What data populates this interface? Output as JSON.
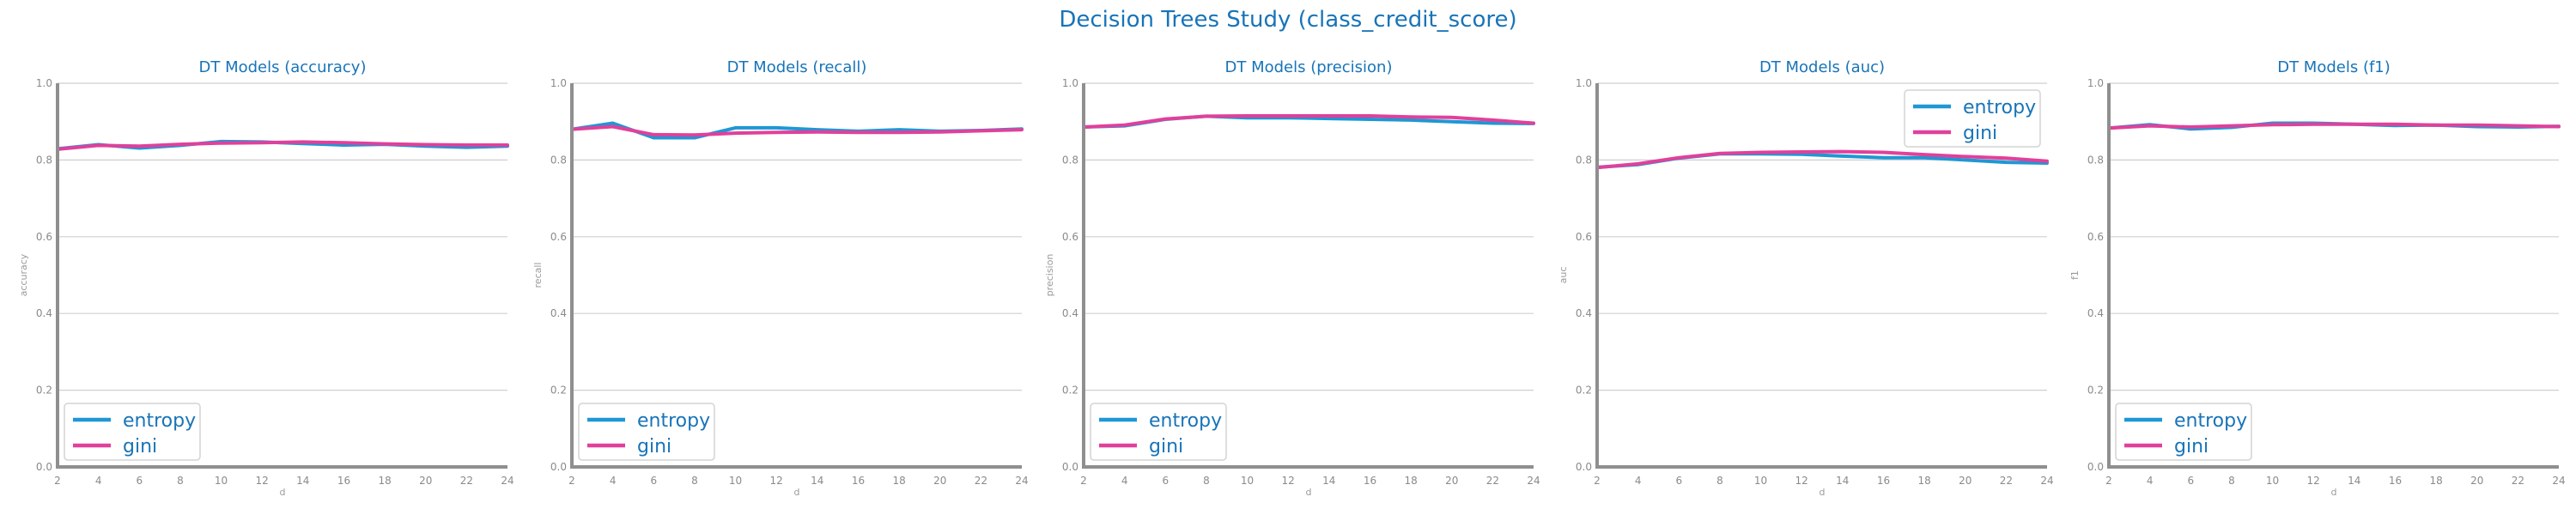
{
  "suptitle": "Decision Trees Study (class_credit_score)",
  "colors": {
    "entropy": "#1f97d4",
    "gini": "#e1409b",
    "title": "#1874b8",
    "axis": "#8f8f8f",
    "grid": "#cfcfcf"
  },
  "chart_data": [
    {
      "type": "line",
      "title": "DT Models (accuracy)",
      "xlabel": "d",
      "ylabel": "accuracy",
      "x": [
        2,
        4,
        6,
        8,
        10,
        12,
        14,
        16,
        18,
        20,
        22,
        24
      ],
      "xticks": [
        "2",
        "4",
        "6",
        "8",
        "10",
        "12",
        "14",
        "16",
        "18",
        "20",
        "22",
        "24"
      ],
      "yticks": [
        "0.0",
        "0.2",
        "0.4",
        "0.6",
        "0.8",
        "1.0"
      ],
      "xlim": [
        2,
        24
      ],
      "ylim": [
        0,
        1
      ],
      "grid": "y",
      "legend": "lower-left",
      "series": [
        {
          "name": "entropy",
          "values": [
            0.829,
            0.84,
            0.831,
            0.838,
            0.848,
            0.847,
            0.843,
            0.839,
            0.841,
            0.836,
            0.833,
            0.836
          ]
        },
        {
          "name": "gini",
          "values": [
            0.828,
            0.838,
            0.836,
            0.841,
            0.844,
            0.845,
            0.847,
            0.845,
            0.842,
            0.84,
            0.839,
            0.839
          ]
        }
      ]
    },
    {
      "type": "line",
      "title": "DT Models (recall)",
      "xlabel": "d",
      "ylabel": "recall",
      "x": [
        2,
        4,
        6,
        8,
        10,
        12,
        14,
        16,
        18,
        20,
        22,
        24
      ],
      "xticks": [
        "2",
        "4",
        "6",
        "8",
        "10",
        "12",
        "14",
        "16",
        "18",
        "20",
        "22",
        "24"
      ],
      "yticks": [
        "0.0",
        "0.2",
        "0.4",
        "0.6",
        "0.8",
        "1.0"
      ],
      "xlim": [
        2,
        24
      ],
      "ylim": [
        0,
        1
      ],
      "grid": "y",
      "legend": "lower-left",
      "series": [
        {
          "name": "entropy",
          "values": [
            0.88,
            0.896,
            0.858,
            0.858,
            0.884,
            0.884,
            0.879,
            0.875,
            0.879,
            0.875,
            0.877,
            0.881
          ]
        },
        {
          "name": "gini",
          "values": [
            0.88,
            0.887,
            0.866,
            0.865,
            0.87,
            0.872,
            0.873,
            0.872,
            0.872,
            0.873,
            0.876,
            0.879
          ]
        }
      ]
    },
    {
      "type": "line",
      "title": "DT Models (precision)",
      "xlabel": "d",
      "ylabel": "precision",
      "x": [
        2,
        4,
        6,
        8,
        10,
        12,
        14,
        16,
        18,
        20,
        22,
        24
      ],
      "xticks": [
        "2",
        "4",
        "6",
        "8",
        "10",
        "12",
        "14",
        "16",
        "18",
        "20",
        "22",
        "24"
      ],
      "yticks": [
        "0.0",
        "0.2",
        "0.4",
        "0.6",
        "0.8",
        "1.0"
      ],
      "xlim": [
        2,
        24
      ],
      "ylim": [
        0,
        1
      ],
      "grid": "y",
      "legend": "lower-left",
      "series": [
        {
          "name": "entropy",
          "values": [
            0.886,
            0.889,
            0.906,
            0.914,
            0.91,
            0.91,
            0.908,
            0.906,
            0.904,
            0.9,
            0.896,
            0.895
          ]
        },
        {
          "name": "gini",
          "values": [
            0.886,
            0.891,
            0.907,
            0.914,
            0.915,
            0.915,
            0.915,
            0.915,
            0.912,
            0.911,
            0.904,
            0.896
          ]
        }
      ]
    },
    {
      "type": "line",
      "title": "DT Models (auc)",
      "xlabel": "d",
      "ylabel": "auc",
      "x": [
        2,
        4,
        6,
        8,
        10,
        12,
        14,
        16,
        18,
        20,
        22,
        24
      ],
      "xticks": [
        "2",
        "4",
        "6",
        "8",
        "10",
        "12",
        "14",
        "16",
        "18",
        "20",
        "22",
        "24"
      ],
      "yticks": [
        "0.0",
        "0.2",
        "0.4",
        "0.6",
        "0.8",
        "1.0"
      ],
      "xlim": [
        2,
        24
      ],
      "ylim": [
        0,
        1
      ],
      "grid": "y",
      "legend": "upper-right",
      "series": [
        {
          "name": "entropy",
          "values": [
            0.781,
            0.788,
            0.805,
            0.816,
            0.816,
            0.815,
            0.81,
            0.806,
            0.806,
            0.8,
            0.794,
            0.792
          ]
        },
        {
          "name": "gini",
          "values": [
            0.78,
            0.79,
            0.806,
            0.817,
            0.82,
            0.821,
            0.822,
            0.82,
            0.814,
            0.809,
            0.805,
            0.797
          ]
        }
      ]
    },
    {
      "type": "line",
      "title": "DT Models (f1)",
      "xlabel": "d",
      "ylabel": "f1",
      "x": [
        2,
        4,
        6,
        8,
        10,
        12,
        14,
        16,
        18,
        20,
        22,
        24
      ],
      "xticks": [
        "2",
        "4",
        "6",
        "8",
        "10",
        "12",
        "14",
        "16",
        "18",
        "20",
        "22",
        "24"
      ],
      "yticks": [
        "0.0",
        "0.2",
        "0.4",
        "0.6",
        "0.8",
        "1.0"
      ],
      "xlim": [
        2,
        24
      ],
      "ylim": [
        0,
        1
      ],
      "grid": "y",
      "legend": "lower-left",
      "series": [
        {
          "name": "entropy",
          "values": [
            0.883,
            0.892,
            0.881,
            0.885,
            0.896,
            0.896,
            0.893,
            0.89,
            0.891,
            0.887,
            0.886,
            0.888
          ]
        },
        {
          "name": "gini",
          "values": [
            0.883,
            0.889,
            0.886,
            0.889,
            0.892,
            0.893,
            0.893,
            0.893,
            0.891,
            0.891,
            0.889,
            0.887
          ]
        }
      ]
    }
  ]
}
